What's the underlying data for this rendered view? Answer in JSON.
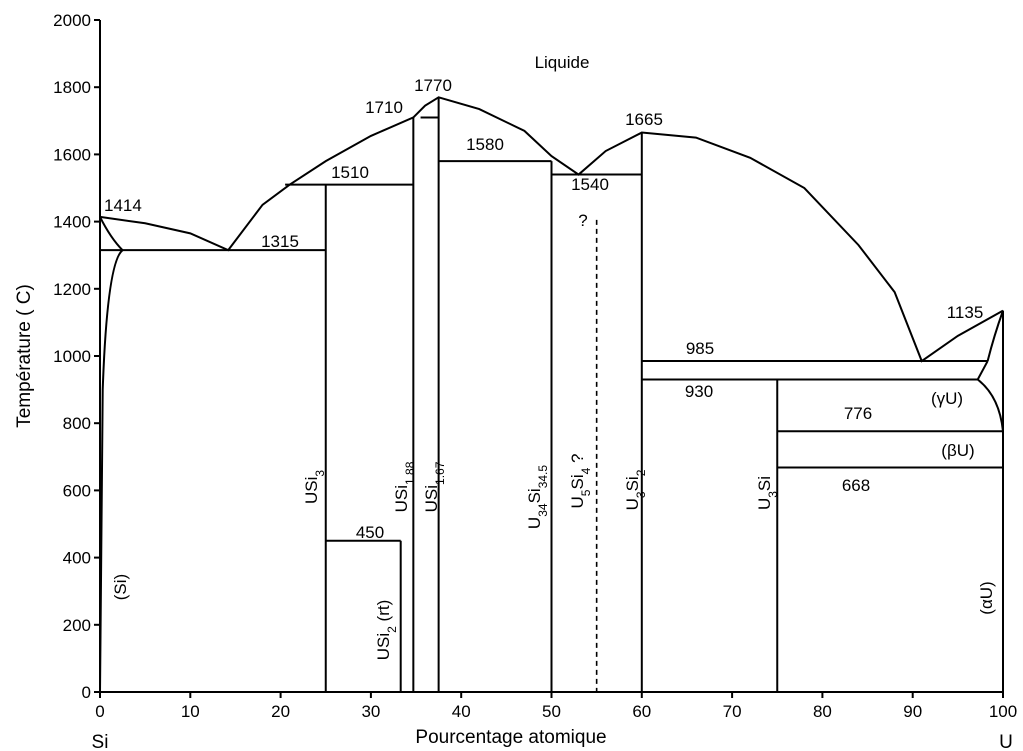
{
  "chart_data": {
    "type": "phase-diagram",
    "title": "",
    "xlabel": "Pourcentage atomique",
    "ylabel": "Température ( C)",
    "xlim": [
      0,
      100
    ],
    "ylim": [
      0,
      2000
    ],
    "x_ticks": [
      0,
      10,
      20,
      30,
      40,
      50,
      60,
      70,
      80,
      90,
      100
    ],
    "y_ticks": [
      0,
      200,
      400,
      600,
      800,
      1000,
      1200,
      1400,
      1600,
      1800,
      2000
    ],
    "x_ends": {
      "left": "Si",
      "right": "U"
    },
    "region_labels": {
      "liquid": "Liquide",
      "si_solid": "(Si)",
      "gamma_u": "(γU)",
      "beta_u": "(βU)",
      "alpha_u": "(αU)"
    },
    "temperatures": [
      {
        "label": "1414",
        "x": 0.0,
        "y": 1414
      },
      {
        "label": "1315",
        "x": 14.2,
        "y": 1315
      },
      {
        "label": "1510",
        "x": 25.0,
        "y": 1510
      },
      {
        "label": "1710",
        "x": 34.7,
        "y": 1710
      },
      {
        "label": "1770",
        "x": 37.5,
        "y": 1770
      },
      {
        "label": "1580",
        "x": 45.0,
        "y": 1580
      },
      {
        "label": "1540",
        "x": 56.0,
        "y": 1540
      },
      {
        "label": "1665",
        "x": 60.0,
        "y": 1665
      },
      {
        "label": "985",
        "x": 75.0,
        "y": 985
      },
      {
        "label": "930",
        "x": 65.0,
        "y": 930
      },
      {
        "label": "776",
        "x": 83.0,
        "y": 776
      },
      {
        "label": "668",
        "x": 83.0,
        "y": 668
      },
      {
        "label": "450",
        "x": 29.0,
        "y": 450
      },
      {
        "label": "1135",
        "x": 100.0,
        "y": 1135
      }
    ],
    "compounds": [
      {
        "base": "USi",
        "sub": "3",
        "base2": "",
        "sub2": "",
        "suffix": "",
        "x": 25.0
      },
      {
        "base": "USi",
        "sub": "2",
        "base2": "",
        "sub2": "",
        "suffix": " (rt)",
        "x": 33.3
      },
      {
        "base": "USi",
        "sub": "1.88",
        "base2": "",
        "sub2": "",
        "suffix": "",
        "x": 34.7
      },
      {
        "base": "USi",
        "sub": "1.67",
        "base2": "",
        "sub2": "",
        "suffix": "",
        "x": 37.5
      },
      {
        "base": "U",
        "sub": "34",
        "base2": "Si",
        "sub2": "34.5",
        "suffix": "",
        "x": 50.0
      },
      {
        "base": "U",
        "sub": "5",
        "base2": "Si",
        "sub2": "4",
        "suffix": "  ?",
        "x": 55.0
      },
      {
        "base": "U",
        "sub": "3",
        "base2": "Si",
        "sub2": "2",
        "suffix": "",
        "x": 60.0
      },
      {
        "base": "U",
        "sub": "3",
        "base2": "Si",
        "sub2": "",
        "suffix": "",
        "x": 75.0
      }
    ],
    "question_mark": "?",
    "liquidus": [
      [
        0,
        1414
      ],
      [
        5,
        1395
      ],
      [
        10,
        1365
      ],
      [
        14.2,
        1315
      ],
      [
        18,
        1450
      ],
      [
        21,
        1510
      ],
      [
        25,
        1580
      ],
      [
        30,
        1655
      ],
      [
        34.7,
        1710
      ],
      [
        36,
        1745
      ],
      [
        37.5,
        1770
      ],
      [
        42,
        1735
      ],
      [
        47,
        1670
      ],
      [
        50,
        1595
      ],
      [
        53,
        1540
      ],
      [
        56,
        1610
      ],
      [
        60,
        1665
      ],
      [
        66,
        1650
      ],
      [
        72,
        1590
      ],
      [
        78,
        1500
      ],
      [
        84,
        1330
      ],
      [
        88,
        1190
      ],
      [
        91,
        985
      ],
      [
        95,
        1060
      ],
      [
        100,
        1135
      ]
    ],
    "invariants": [
      {
        "x1": 0,
        "x2": 25.0,
        "y": 1315
      },
      {
        "x1": 20.5,
        "x2": 34.7,
        "y": 1510
      },
      {
        "x1": 37.5,
        "x2": 50.0,
        "y": 1580
      },
      {
        "x1": 50.0,
        "x2": 60.0,
        "y": 1540
      },
      {
        "x1": 60.0,
        "x2": 98.3,
        "y": 985
      },
      {
        "x1": 60.0,
        "x2": 97.2,
        "y": 930
      },
      {
        "x1": 75.0,
        "x2": 100,
        "y": 776
      },
      {
        "x1": 75.0,
        "x2": 100,
        "y": 668
      },
      {
        "x1": 25.0,
        "x2": 33.3,
        "y": 450
      }
    ]
  }
}
